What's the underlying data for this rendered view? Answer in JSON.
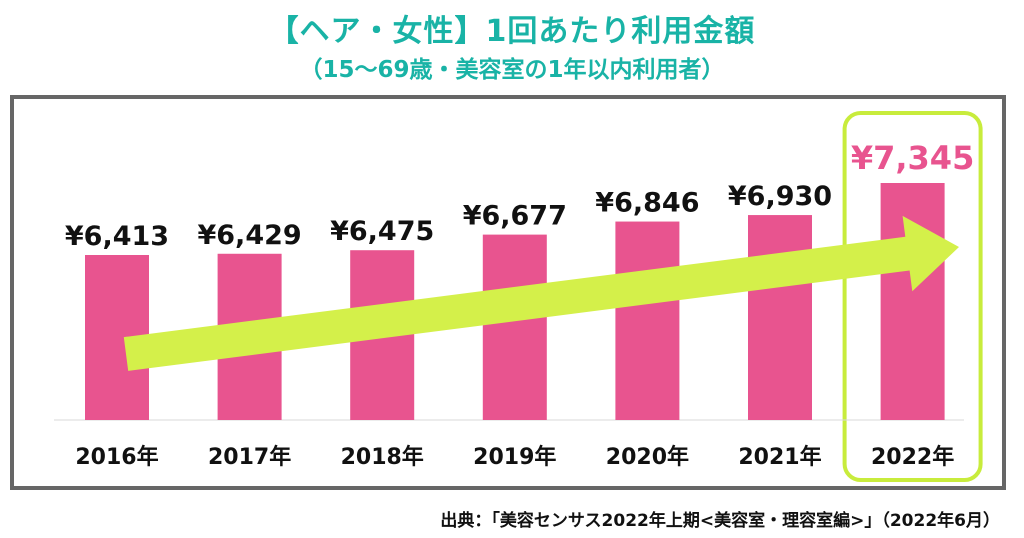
{
  "header": {
    "title": "【ヘア・女性】1回あたり利用金額",
    "subtitle": "（15～69歳・美容室の1年以内利用者）"
  },
  "source": "出典：「美容センサス2022年上期<美容室・理容室編>」（2022年6月）",
  "colors": {
    "title": "#19b3a6",
    "bar": "#e8548f",
    "highlight_frame": "#c8ec3c",
    "arrow": "#d4f04a",
    "highlight_label": "#e8548f",
    "frame": "#666666"
  },
  "chart_data": {
    "type": "bar",
    "categories": [
      "2016年",
      "2017年",
      "2018年",
      "2019年",
      "2020年",
      "2021年",
      "2022年"
    ],
    "values": [
      6413,
      6429,
      6475,
      6677,
      6846,
      6930,
      7345
    ],
    "data_labels": [
      "¥6,413",
      "¥6,429",
      "¥6,475",
      "¥6,677",
      "¥6,846",
      "¥6,930",
      "¥7,345"
    ],
    "title": "【ヘア・女性】1回あたり利用金額",
    "subtitle": "（15～69歳・美容室の1年以内利用者）",
    "xlabel": "",
    "ylabel": "",
    "highlight_category": "2022年",
    "trend_arrow": true,
    "grid": false,
    "legend": "none"
  }
}
